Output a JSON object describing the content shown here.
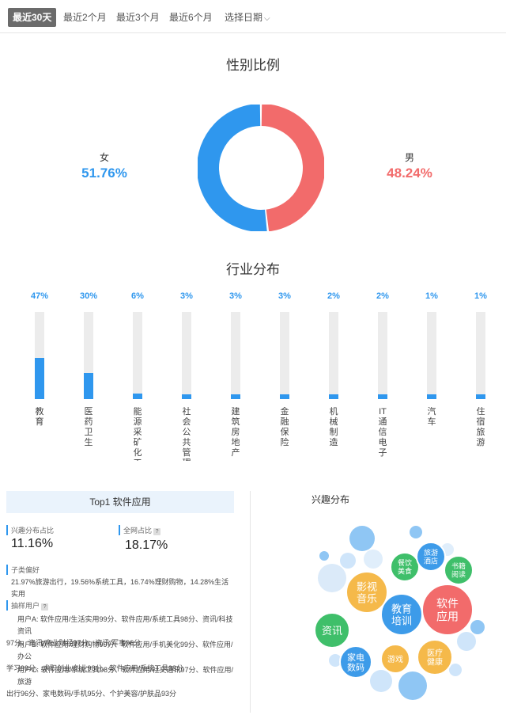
{
  "tabs": [
    {
      "label": "最近30天",
      "active": true
    },
    {
      "label": "最近2个月"
    },
    {
      "label": "最近3个月"
    },
    {
      "label": "最近6个月"
    },
    {
      "label": "选择日期",
      "has_dropdown": true
    }
  ],
  "gender": {
    "title": "性别比例",
    "female_label": "女",
    "female_value": "51.76%",
    "male_label": "男",
    "male_value": "48.24%",
    "colors": {
      "female": "#2f97ee",
      "male": "#f26b6b"
    }
  },
  "industry": {
    "title": "行业分布",
    "items": [
      {
        "label": "教育",
        "pct_text": "47%"
      },
      {
        "label": "医药卫生",
        "pct_text": "30%"
      },
      {
        "label": "能源采矿化工",
        "pct_text": "6%"
      },
      {
        "label": "社会公共管理",
        "pct_text": "3%"
      },
      {
        "label": "建筑房地产",
        "pct_text": "3%"
      },
      {
        "label": "金融保险",
        "pct_text": "3%"
      },
      {
        "label": "机械制造",
        "pct_text": "2%"
      },
      {
        "label": "IT通信电子",
        "pct_text": "2%"
      },
      {
        "label": "汽车",
        "pct_text": "1%"
      },
      {
        "label": "住宿旅游",
        "pct_text": "1%"
      }
    ]
  },
  "chart_data": [
    {
      "type": "pie",
      "title": "性别比例",
      "categories": [
        "女",
        "男"
      ],
      "values": [
        51.76,
        48.24
      ]
    },
    {
      "type": "bar",
      "title": "行业分布",
      "categories": [
        "教育",
        "医药卫生",
        "能源采矿化工",
        "社会公共管理",
        "建筑房地产",
        "金融保险",
        "机械制造",
        "IT通信电子",
        "汽车",
        "住宿旅游"
      ],
      "values": [
        47,
        30,
        6,
        3,
        3,
        3,
        2,
        2,
        1,
        1
      ]
    }
  ],
  "top_app": {
    "header": "Top1 软件应用",
    "interest_share_label": "兴趣分布占比",
    "interest_share_value": "11.16%",
    "network_share_label": "全网占比",
    "network_share_value": "18.17%",
    "sub_pref_label": "子类偏好",
    "sub_pref_text": "21.97%旅游出行，19.56%系统工具，16.74%理财购物，14.28%生活实用",
    "sample_users_label": "抽样用户",
    "users": [
      {
        "line1": "用户A: 软件应用/生活实用99分、软件应用/系统工具98分、资讯/科技资讯",
        "line2": "97分、资讯/商业财经97分、资讯/军事96分"
      },
      {
        "line1": "用户B: 软件应用/理财购物99分、软件应用/手机美化99分、软件应用/办公",
        "line2": "学习99分、求职创业/创业98分、软件应用/系统工具98分"
      },
      {
        "line1": "用户C: 软件应用/系统工具98分、软件应用/社交通讯97分、软件应用/旅游",
        "line2": "出行96分、家电数码/手机95分、个护美容/护肤品93分"
      }
    ]
  },
  "interest": {
    "title": "兴趣分布",
    "bubbles": [
      {
        "label1": "软件",
        "label2": "应用",
        "color": "#f26b6b"
      },
      {
        "label1": "教育",
        "label2": "培训",
        "color": "#3d9be9"
      },
      {
        "label1": "影视",
        "label2": "音乐",
        "color": "#f5b94a"
      },
      {
        "label1": "资讯",
        "label2": "",
        "color": "#3fbf6a"
      },
      {
        "label1": "家电",
        "label2": "数码",
        "color": "#3d9be9"
      },
      {
        "label1": "游戏",
        "label2": "",
        "color": "#f5b94a"
      },
      {
        "label1": "医疗",
        "label2": "健康",
        "color": "#f5b94a"
      },
      {
        "label1": "餐饮",
        "label2": "美食",
        "color": "#3fbf6a"
      },
      {
        "label1": "旅游",
        "label2": "酒店",
        "color": "#3d9be9"
      },
      {
        "label1": "书籍",
        "label2": "阅读",
        "color": "#3fbf6a"
      }
    ]
  }
}
